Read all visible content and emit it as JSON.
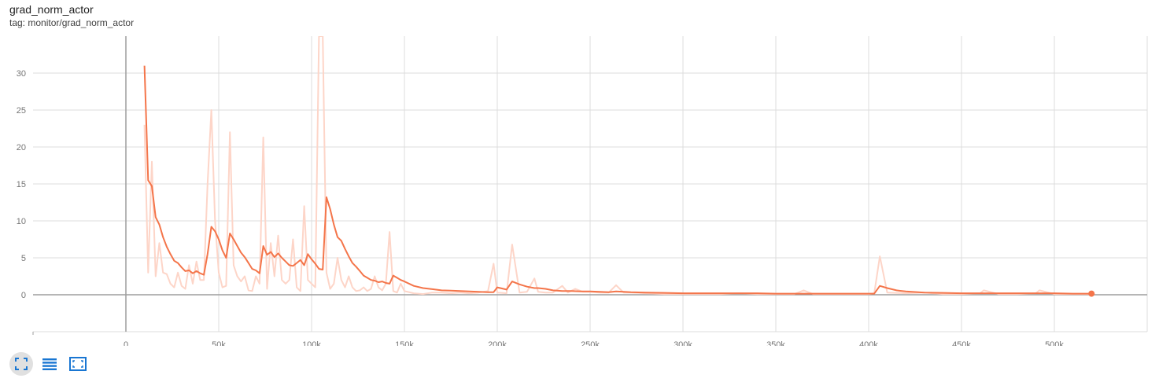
{
  "header": {
    "title": "grad_norm_actor",
    "tag": "tag: monitor/grad_norm_actor"
  },
  "toolbar": {
    "buttons": [
      {
        "icon": "fit-domain-icon",
        "active": true
      },
      {
        "icon": "log-scale-list-icon",
        "active": false
      },
      {
        "icon": "expand-chart-icon",
        "active": false
      }
    ]
  },
  "colors": {
    "accent": "#f4754a",
    "raw": "#fdd5c8",
    "grid": "#dcdcdc",
    "axis": "#9e9e9e",
    "icon": "#1976d2"
  },
  "chart_data": {
    "type": "line",
    "title": "",
    "xlabel": "",
    "ylabel": "",
    "xlim": [
      -50000,
      550000
    ],
    "ylim": [
      -5,
      35
    ],
    "xticks": [
      0,
      50000,
      100000,
      150000,
      200000,
      250000,
      300000,
      350000,
      400000,
      450000,
      500000
    ],
    "xtick_labels": [
      "0",
      "50k",
      "100k",
      "150k",
      "200k",
      "250k",
      "300k",
      "350k",
      "400k",
      "450k",
      "500k"
    ],
    "yticks": [
      0,
      5,
      10,
      15,
      20,
      25,
      30
    ],
    "ytick_labels": [
      "0",
      "5",
      "10",
      "15",
      "20",
      "25",
      "30"
    ],
    "grid": true,
    "series": [
      {
        "role": "raw",
        "x": [
          10000,
          12000,
          14000,
          16000,
          18000,
          20000,
          22000,
          24000,
          26000,
          28000,
          30000,
          32000,
          34000,
          36000,
          38000,
          40000,
          42000,
          44000,
          46000,
          48000,
          50000,
          52000,
          54000,
          56000,
          58000,
          60000,
          62000,
          64000,
          66000,
          68000,
          70000,
          72000,
          74000,
          76000,
          78000,
          80000,
          82000,
          84000,
          86000,
          88000,
          90000,
          92000,
          94000,
          96000,
          98000,
          100000,
          102000,
          104000,
          106000,
          108000,
          110000,
          112000,
          114000,
          116000,
          118000,
          120000,
          122000,
          124000,
          126000,
          128000,
          130000,
          132000,
          134000,
          136000,
          138000,
          140000,
          142000,
          144000,
          146000,
          148000,
          150000,
          155000,
          160000,
          165000,
          170000,
          175000,
          180000,
          185000,
          190000,
          195000,
          198000,
          200000,
          205000,
          208000,
          212000,
          216000,
          220000,
          222000,
          226000,
          230000,
          235000,
          238000,
          242000,
          246000,
          250000,
          255000,
          260000,
          264000,
          268000,
          272000,
          280000,
          290000,
          300000,
          310000,
          320000,
          330000,
          340000,
          350000,
          360000,
          365000,
          370000,
          380000,
          390000,
          400000,
          403000,
          406000,
          410000,
          420000,
          430000,
          440000,
          450000,
          460000,
          462000,
          470000,
          480000,
          490000,
          492000,
          500000,
          510000,
          520000
        ],
        "y": [
          23,
          3,
          18,
          2.5,
          7,
          3,
          2.8,
          1.5,
          1,
          3,
          1.2,
          0.8,
          4,
          1.5,
          4.5,
          2,
          2,
          15,
          25,
          10,
          3,
          1,
          1.2,
          22,
          4,
          2.5,
          1.8,
          2.5,
          0.6,
          0.5,
          2.5,
          1.5,
          21.3,
          0.8,
          7,
          2.5,
          8,
          2,
          1.5,
          2,
          7.5,
          1,
          0.5,
          12,
          2,
          1.5,
          1,
          35,
          35,
          3,
          0.8,
          1.5,
          5,
          2,
          1,
          2.5,
          1,
          0.5,
          0.6,
          1,
          0.5,
          0.8,
          2.5,
          1,
          0.6,
          1.5,
          8.5,
          0.5,
          0.3,
          1.5,
          0.5,
          0.2,
          0.1,
          0.3,
          0.3,
          0.2,
          0.3,
          0.2,
          0.3,
          0.5,
          4.2,
          0.3,
          0.2,
          6.8,
          0.3,
          0.4,
          2.2,
          0.4,
          0.3,
          0.3,
          1.2,
          0.3,
          0.8,
          0.4,
          0.4,
          0.3,
          0.3,
          1.3,
          0.3,
          0.3,
          0.2,
          0.1,
          0.1,
          0.1,
          0.1,
          0.2,
          0.1,
          0.1,
          0.1,
          0.6,
          0.1,
          0.1,
          0.1,
          0.1,
          0.2,
          5.2,
          0.3,
          0.2,
          0.3,
          0.1,
          0.1,
          0.2,
          0.6,
          0.1,
          0.1,
          0.2,
          0.6,
          0.1,
          0.1,
          0.1
        ]
      },
      {
        "role": "smoothed",
        "x": [
          10000,
          12000,
          14000,
          16000,
          18000,
          20000,
          22000,
          24000,
          26000,
          28000,
          30000,
          32000,
          34000,
          36000,
          38000,
          40000,
          42000,
          44000,
          46000,
          48000,
          50000,
          52000,
          54000,
          56000,
          58000,
          60000,
          62000,
          64000,
          66000,
          68000,
          70000,
          72000,
          74000,
          76000,
          78000,
          80000,
          82000,
          84000,
          86000,
          88000,
          90000,
          92000,
          94000,
          96000,
          98000,
          100000,
          102000,
          104000,
          106000,
          108000,
          110000,
          112000,
          114000,
          116000,
          118000,
          120000,
          122000,
          124000,
          126000,
          128000,
          130000,
          132000,
          134000,
          136000,
          138000,
          140000,
          142000,
          144000,
          146000,
          148000,
          150000,
          155000,
          160000,
          165000,
          170000,
          175000,
          180000,
          185000,
          190000,
          195000,
          198000,
          200000,
          205000,
          208000,
          212000,
          216000,
          220000,
          222000,
          226000,
          230000,
          235000,
          240000,
          245000,
          250000,
          255000,
          260000,
          264000,
          268000,
          272000,
          280000,
          290000,
          300000,
          310000,
          320000,
          330000,
          340000,
          350000,
          360000,
          365000,
          370000,
          380000,
          390000,
          400000,
          403000,
          406000,
          410000,
          415000,
          420000,
          430000,
          440000,
          450000,
          460000,
          470000,
          480000,
          490000,
          500000,
          510000,
          520000
        ],
        "y": [
          31,
          15.5,
          14.7,
          10.5,
          9.5,
          7.8,
          6.5,
          5.5,
          4.6,
          4.3,
          3.7,
          3.2,
          3.3,
          2.9,
          3.2,
          2.9,
          2.7,
          5.5,
          9.2,
          8.6,
          7.5,
          6,
          5,
          8.3,
          7.5,
          6.6,
          5.7,
          5.1,
          4.3,
          3.5,
          3.3,
          2.9,
          6.6,
          5.4,
          5.8,
          5.1,
          5.6,
          5,
          4.5,
          4,
          3.9,
          4.3,
          4.7,
          4,
          5.5,
          4.8,
          4.2,
          3.5,
          3.4,
          13.2,
          11.6,
          9.5,
          7.8,
          7.3,
          6.2,
          5.2,
          4.3,
          3.8,
          3.2,
          2.6,
          2.3,
          2,
          1.9,
          1.7,
          1.8,
          1.6,
          1.5,
          2.6,
          2.3,
          2,
          1.8,
          1.2,
          0.9,
          0.75,
          0.6,
          0.55,
          0.5,
          0.45,
          0.4,
          0.35,
          0.35,
          1,
          0.7,
          1.8,
          1.4,
          1.1,
          0.9,
          0.9,
          0.8,
          0.6,
          0.5,
          0.5,
          0.45,
          0.45,
          0.4,
          0.35,
          0.45,
          0.4,
          0.35,
          0.3,
          0.25,
          0.2,
          0.2,
          0.2,
          0.2,
          0.2,
          0.15,
          0.15,
          0.15,
          0.15,
          0.15,
          0.15,
          0.15,
          0.15,
          1.2,
          0.9,
          0.6,
          0.45,
          0.3,
          0.25,
          0.2,
          0.2,
          0.2,
          0.2,
          0.2,
          0.2,
          0.15,
          0.15
        ]
      }
    ],
    "last_point": {
      "x": 520000,
      "y": 0.15
    }
  }
}
